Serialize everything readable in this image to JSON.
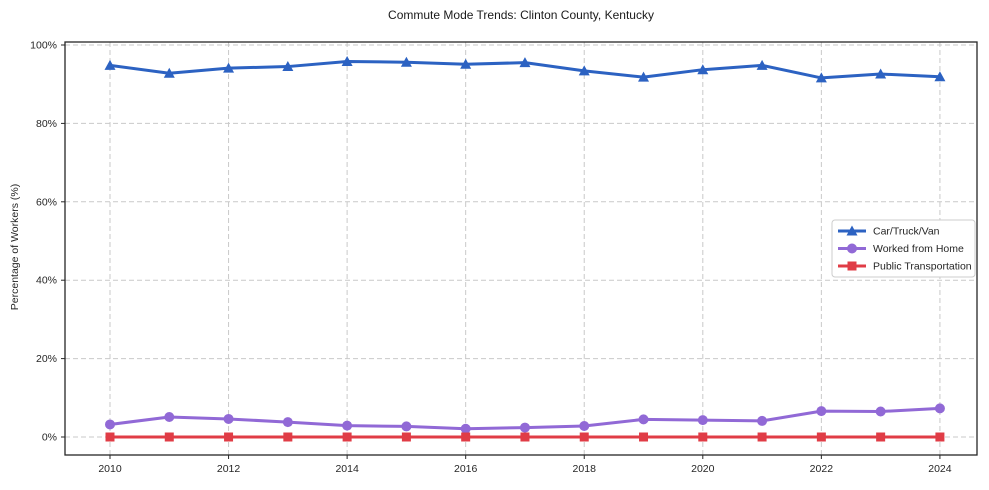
{
  "chart_data": {
    "type": "line",
    "title": "Commute Mode Trends: Clinton County, Kentucky",
    "xlabel": "",
    "ylabel": "Percentage of Workers (%)",
    "x": [
      2010,
      2011,
      2012,
      2013,
      2014,
      2015,
      2016,
      2017,
      2018,
      2019,
      2020,
      2021,
      2022,
      2023,
      2024
    ],
    "xticks": [
      2010,
      2012,
      2014,
      2016,
      2018,
      2020,
      2022,
      2024
    ],
    "yticks": [
      0,
      20,
      40,
      60,
      80,
      100
    ],
    "ytick_suffix": "%",
    "ylim": [
      -4.6,
      100.8
    ],
    "grid": true,
    "grid_style": "dashed",
    "legend_position": "center-right",
    "series": [
      {
        "id": "car-truck-van",
        "name": "Car/Truck/Van",
        "marker": "triangle",
        "color": "#2c62c2",
        "values": [
          94.8,
          92.8,
          94.1,
          94.5,
          95.8,
          95.6,
          95.1,
          95.5,
          93.4,
          91.8,
          93.7,
          94.8,
          91.6,
          92.6,
          91.9
        ]
      },
      {
        "id": "worked-from-home",
        "name": "Worked from Home",
        "marker": "circle",
        "color": "#9169d6",
        "values": [
          3.2,
          5.1,
          4.6,
          3.8,
          2.9,
          2.7,
          2.1,
          2.4,
          2.8,
          4.5,
          4.3,
          4.1,
          6.6,
          6.5,
          7.3
        ]
      },
      {
        "id": "public-transportation",
        "name": "Public Transportation",
        "marker": "square",
        "color": "#e03c46",
        "values": [
          0.0,
          0.0,
          0.0,
          0.0,
          0.0,
          0.0,
          0.0,
          0.0,
          0.0,
          0.0,
          0.0,
          0.0,
          0.0,
          0.0,
          0.0
        ]
      }
    ]
  }
}
